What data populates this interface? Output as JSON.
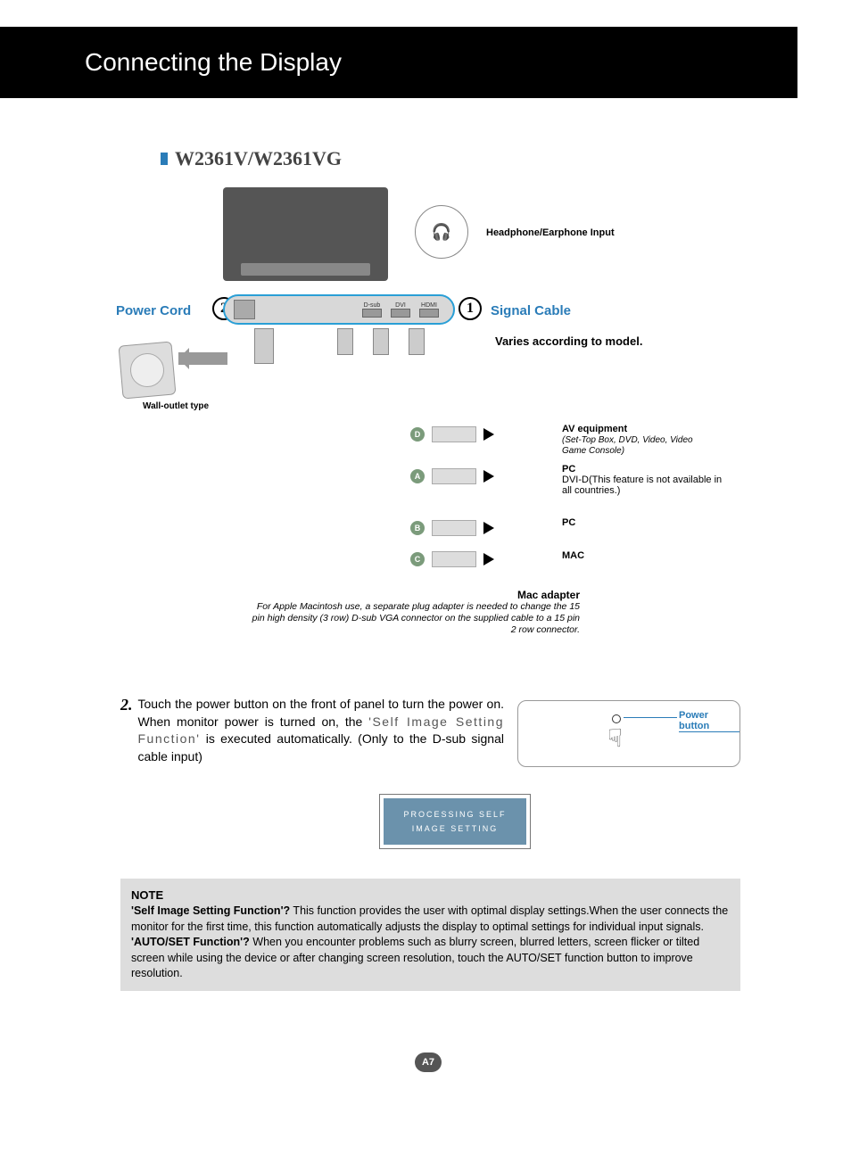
{
  "header": {
    "title": "Connecting the Display"
  },
  "model": "W2361V/W2361VG",
  "labels": {
    "headphone": "Headphone/Earphone Input",
    "power_cord": "Power Cord",
    "signal_cable": "Signal Cable",
    "varies": "Varies according to model.",
    "wall_outlet": "Wall-outlet type",
    "power_button": "Power button"
  },
  "bubbles": {
    "one": "1",
    "two": "2"
  },
  "ports": {
    "dsub": "D-sub",
    "dvi": "DVI",
    "hdmi": "HDMI"
  },
  "destinations": {
    "d": {
      "letter": "D",
      "title": "AV equipment",
      "sub": "(Set-Top Box, DVD, Video, Video Game Console)"
    },
    "a": {
      "letter": "A",
      "title": "PC",
      "sub": "DVI-D(This feature is not available in all countries.)"
    },
    "b": {
      "letter": "B",
      "title": "PC"
    },
    "c": {
      "letter": "C",
      "title": "MAC"
    }
  },
  "mac_adapter": {
    "title": "Mac adapter",
    "body": "For Apple Macintosh use, a  separate plug adapter is needed to change the 15 pin high density (3 row) D-sub VGA connector on the supplied cable to a 15 pin  2 row connector."
  },
  "step2": {
    "num": "2.",
    "text_before": "Touch the power button on the front of panel to turn the power on. When monitor power is turned on, the ",
    "func": "'Self Image Setting Function'",
    "text_mid": " is executed automatically. (Only to the D-sub signal cable input)"
  },
  "processing": {
    "line1": "PROCESSING SELF",
    "line2": "IMAGE SETTING"
  },
  "note": {
    "title": "NOTE",
    "q1": "'Self Image Setting Function'?",
    "a1": " This function provides the user with optimal display settings.When the user connects the monitor for the first time, this function automatically adjusts the display to optimal settings for individual input signals.",
    "q2": "'AUTO/SET Function'?",
    "a2": " When you encounter problems such as blurry screen, blurred letters, screen flicker or tilted screen while using the device or after changing screen resolution, touch the AUTO/SET function button to improve resolution."
  },
  "page_number": "A7",
  "colors": {
    "accent_blue": "#2a7cb8",
    "port_border": "#2a9fd6",
    "header_bg": "#000000",
    "note_bg": "#dddddd",
    "processing_bg": "#6b92ac"
  }
}
